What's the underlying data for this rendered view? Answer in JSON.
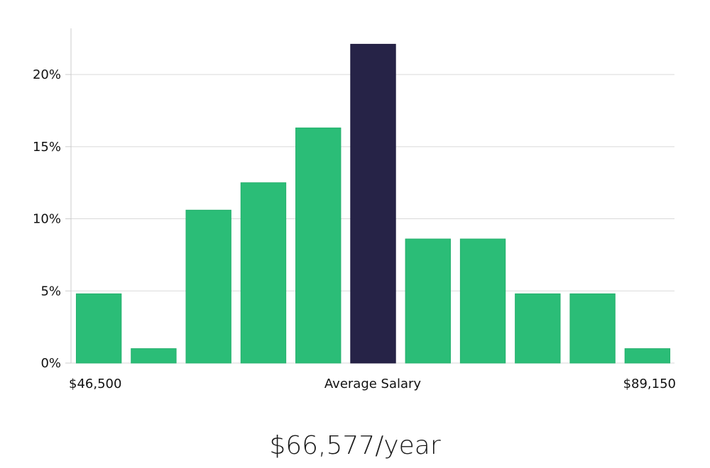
{
  "chart_data": {
    "type": "bar",
    "categories": [
      "1",
      "2",
      "3",
      "4",
      "5",
      "6",
      "7",
      "8",
      "9",
      "10",
      "11"
    ],
    "values": [
      4.8,
      1.0,
      10.6,
      12.5,
      16.3,
      22.1,
      8.6,
      8.6,
      4.8,
      4.8,
      1.0
    ],
    "highlight_index": 5,
    "ylim": [
      0,
      23.2
    ],
    "yticks": [
      0,
      5,
      10,
      15,
      20
    ],
    "ytick_labels": [
      "0%",
      "5%",
      "10%",
      "15%",
      "20%"
    ],
    "x_min_label": "$46,500",
    "x_center_label": "Average Salary",
    "x_max_label": "$89,150",
    "grid": true,
    "colors": {
      "bar": "#2bbd77",
      "highlight": "#262347",
      "grid": "#d9d9d9",
      "axis": "#cccccc"
    }
  },
  "summary": {
    "salary_text": "$66,577/year"
  }
}
